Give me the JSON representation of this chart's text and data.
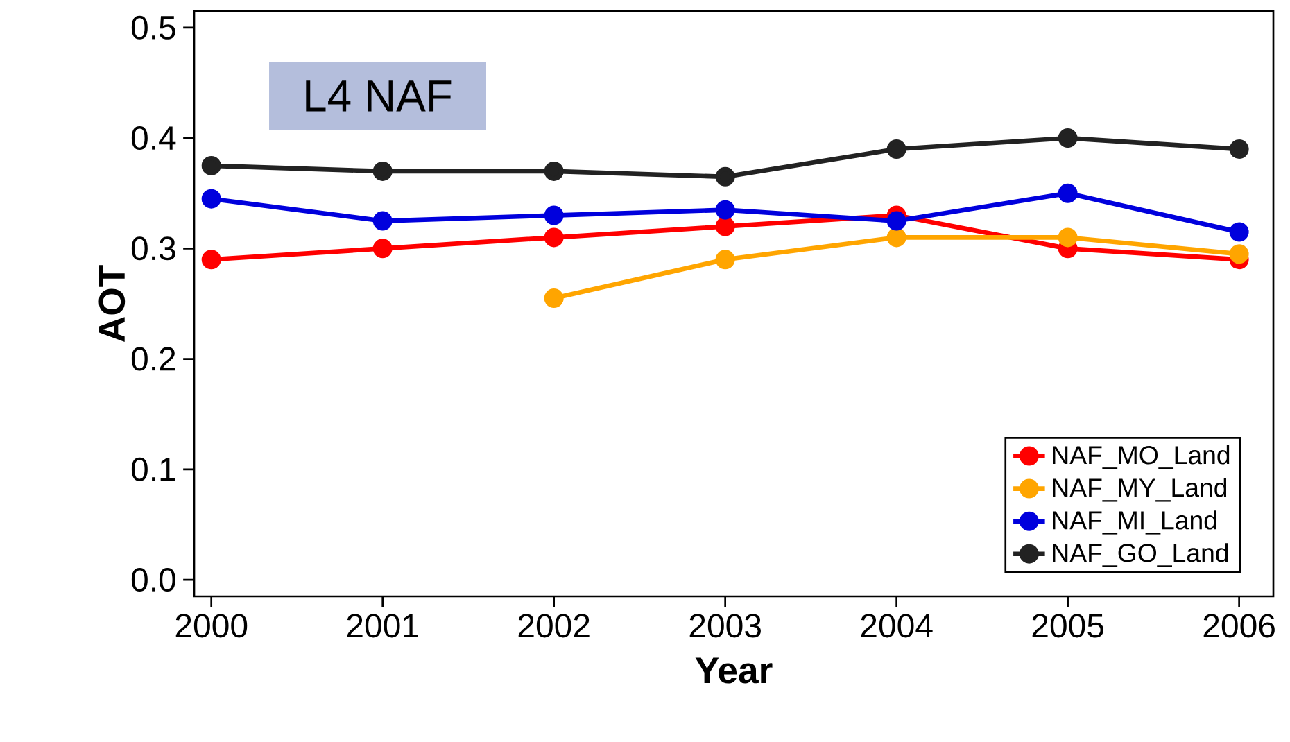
{
  "chart_data": {
    "type": "line",
    "xlabel": "Year",
    "ylabel": "AOT",
    "annotations": [
      "L4 NAF"
    ],
    "x": [
      2000,
      2001,
      2002,
      2003,
      2004,
      2005,
      2006
    ],
    "series": [
      {
        "name": "NAF_MO_Land",
        "color": "#ff0000",
        "values": [
          0.29,
          0.3,
          0.31,
          0.32,
          0.33,
          0.3,
          0.29
        ]
      },
      {
        "name": "NAF_MY_Land",
        "color": "#ffa500",
        "values": [
          null,
          null,
          0.255,
          0.29,
          0.31,
          0.31,
          0.295
        ]
      },
      {
        "name": "NAF_MI_Land",
        "color": "#0000dd",
        "values": [
          0.345,
          0.325,
          0.33,
          0.335,
          0.325,
          0.35,
          0.315
        ]
      },
      {
        "name": "NAF_GO_Land",
        "color": "#222222",
        "values": [
          0.375,
          0.37,
          0.37,
          0.365,
          0.39,
          0.4,
          0.39
        ]
      }
    ],
    "xlim": [
      1999.9,
      2006.2
    ],
    "ylim": [
      -0.015,
      0.515
    ],
    "xticks": [
      2000,
      2001,
      2002,
      2003,
      2004,
      2005,
      2006
    ],
    "yticks": [
      {
        "value": 0,
        "label": "0.0"
      },
      0.1,
      0.2,
      0.3,
      0.4,
      0.5
    ],
    "grid": false,
    "legend": "bottom right",
    "marker": "circle",
    "line_style": "solid"
  }
}
